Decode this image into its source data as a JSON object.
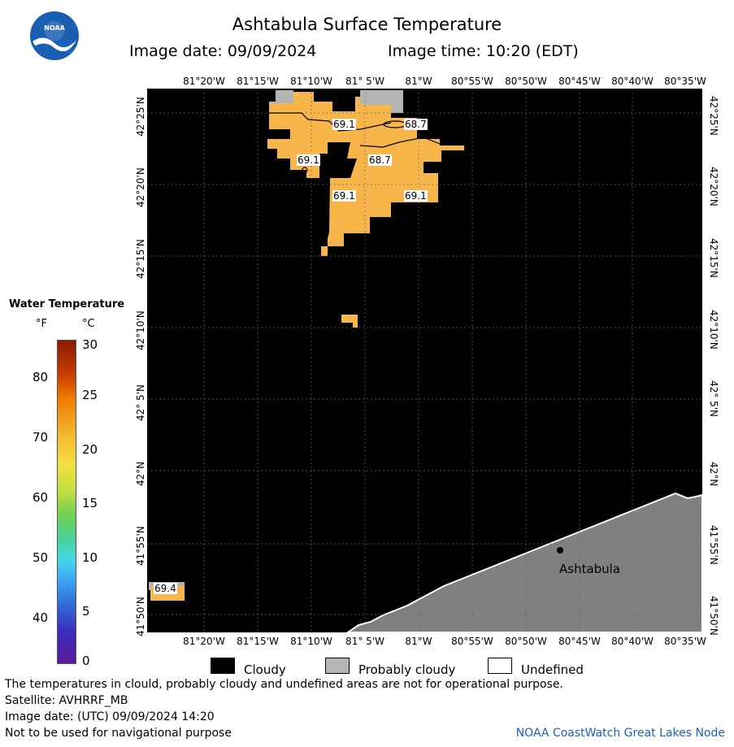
{
  "header": {
    "title": "Ashtabula Surface Temperature",
    "image_date": "Image date: 09/09/2024",
    "image_time": "Image time: 10:20 (EDT)"
  },
  "logo": {
    "text": "NOAA"
  },
  "lon_labels_top": [
    "81°20'W",
    "81°15'W",
    "81°10'W",
    "81° 5'W",
    "81°W",
    "80°55'W",
    "80°50'W",
    "80°45'W",
    "80°40'W",
    "80°35'W"
  ],
  "lon_labels_bottom": [
    "81°20'W",
    "81°15'W",
    "81°10'W",
    "81° 5'W",
    "81°W",
    "80°55'W",
    "80°50'W",
    "80°45'W",
    "80°40'W",
    "80°35'W"
  ],
  "lat_labels": [
    "42°25'N",
    "42°20'N",
    "42°15'N",
    "42°10'N",
    "42° 5'N",
    "42°N",
    "41°55'N",
    "41°50'N"
  ],
  "legend": {
    "title": "Water Temperature",
    "unit_f": "°F",
    "unit_c": "°C",
    "fahrenheit_ticks": [
      "80",
      "70",
      "60",
      "50",
      "40"
    ],
    "celsius_ticks": [
      "30",
      "25",
      "20",
      "15",
      "10",
      "5",
      "0"
    ]
  },
  "map": {
    "place_label": "Ashtabula",
    "temperature_labels": [
      "69.1",
      "68.7",
      "69.1",
      "68.7",
      "69.1",
      "69.1",
      "69.4"
    ],
    "colors": {
      "cloudy": "#000000",
      "land": "#808080",
      "probably_cloudy": "#b4b4b4",
      "water_69": "#f7b54a"
    }
  },
  "key": {
    "cloudy": "Cloudy",
    "probably_cloudy": "Probably cloudy",
    "undefined": "Undefined"
  },
  "footer": {
    "line1": "The temperatures in clould, probably cloudy and undefined areas are not for operational purpose.",
    "line2": "Satellite: AVHRRF_MB",
    "line3": "Image date: (UTC) 09/09/2024  14:20",
    "line4": "Not to be used for navigational purpose",
    "credit": "NOAA CoastWatch Great Lakes Node"
  }
}
